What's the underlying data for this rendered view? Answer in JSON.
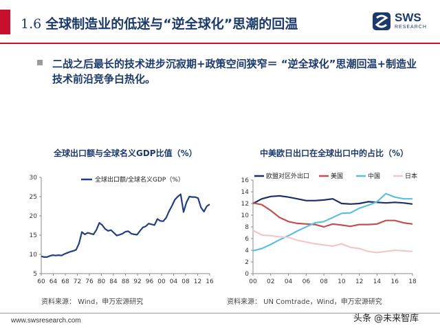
{
  "header": {
    "number": "1.6",
    "title": "全球制造业的低迷与“逆全球化”思潮的回温"
  },
  "logo": {
    "brand": "SWS",
    "sub": "RESEARCH"
  },
  "bullet": {
    "text": "二战之后最长的技术进步沉寂期+政策空间狭窄＝ “逆全球化”思潮回温+制造业技术前沿竞争白热化。"
  },
  "colors": {
    "accent": "#c8102e",
    "title": "#1b3a6b"
  },
  "chart_data": [
    {
      "type": "line",
      "title": "全球出口额与全球名义GDP比值（%）",
      "legend": [
        "全球出口额/全球名义GDP（%）"
      ],
      "x": [
        1960,
        1961,
        1962,
        1963,
        1964,
        1965,
        1966,
        1967,
        1968,
        1969,
        1970,
        1971,
        1972,
        1973,
        1974,
        1975,
        1976,
        1977,
        1978,
        1979,
        1980,
        1981,
        1982,
        1983,
        1984,
        1985,
        1986,
        1987,
        1988,
        1989,
        1990,
        1991,
        1992,
        1993,
        1994,
        1995,
        1996,
        1997,
        1998,
        1999,
        2000,
        2001,
        2002,
        2003,
        2004,
        2005,
        2006,
        2007,
        2008,
        2009,
        2010,
        2011,
        2012,
        2013,
        2014,
        2015,
        2016,
        2017,
        2018
      ],
      "x_tick_labels": [
        "60",
        "64",
        "68",
        "72",
        "76",
        "80",
        "84",
        "88",
        "92",
        "96",
        "00",
        "04",
        "08",
        "12",
        "16"
      ],
      "series": [
        {
          "color": "#1f3f7f",
          "values": [
            9.5,
            9.3,
            9.3,
            9.6,
            9.8,
            9.7,
            9.8,
            9.7,
            10.1,
            10.4,
            10.7,
            10.9,
            11.2,
            12.8,
            15.8,
            15.2,
            15.6,
            15.4,
            15.2,
            16.4,
            18.2,
            17.6,
            16.6,
            16.1,
            16.3,
            15.6,
            14.9,
            15.1,
            15.4,
            15.9,
            16.0,
            15.4,
            15.2,
            15.1,
            16.1,
            17.0,
            17.3,
            18.0,
            17.8,
            17.6,
            19.2,
            18.7,
            18.6,
            19.5,
            21.2,
            22.6,
            24.2,
            25.0,
            25.6,
            21.0,
            23.5,
            25.0,
            24.9,
            24.9,
            24.6,
            22.2,
            21.1,
            22.5,
            23.0
          ]
        }
      ],
      "ylim": [
        5,
        30
      ],
      "y_ticks": [
        5,
        10,
        15,
        20,
        25,
        30
      ],
      "source": "资料来源：  Wind，申万宏源研究"
    },
    {
      "type": "line",
      "title": "中美欧日出口在全球出口中的占比（%）",
      "x": [
        2000,
        2001,
        2002,
        2003,
        2004,
        2005,
        2006,
        2007,
        2008,
        2009,
        2010,
        2011,
        2012,
        2013,
        2014,
        2015,
        2016,
        2017,
        2018
      ],
      "x_tick_labels": [
        "00",
        "02",
        "04",
        "06",
        "08",
        "10",
        "12",
        "14",
        "16",
        "18"
      ],
      "series": [
        {
          "name": "欧盟对区外出口",
          "color": "#1b2f66",
          "values": [
            12.0,
            12.8,
            13.2,
            13.3,
            13.1,
            12.8,
            12.5,
            12.5,
            12.6,
            12.8,
            12.0,
            11.9,
            12.0,
            12.3,
            12.2,
            12.1,
            12.2,
            12.1,
            11.9
          ]
        },
        {
          "name": "美国",
          "color": "#c0504d",
          "values": [
            12.1,
            11.8,
            10.8,
            9.6,
            8.9,
            8.6,
            8.5,
            8.4,
            8.0,
            8.5,
            8.3,
            8.1,
            8.4,
            8.4,
            8.5,
            9.1,
            9.1,
            8.7,
            8.5
          ]
        },
        {
          "name": "中国",
          "color": "#5bc0de",
          "values": [
            3.9,
            4.3,
            5.0,
            5.8,
            6.5,
            7.3,
            8.0,
            8.7,
            8.9,
            9.6,
            10.3,
            10.4,
            11.2,
            11.7,
            12.3,
            13.7,
            13.1,
            12.8,
            12.8
          ]
        },
        {
          "name": "日本",
          "color": "#f2c7c7",
          "values": [
            7.4,
            6.6,
            6.5,
            6.3,
            6.2,
            5.7,
            5.4,
            5.1,
            4.9,
            4.7,
            5.1,
            4.5,
            4.3,
            3.8,
            3.6,
            3.8,
            4.0,
            3.9,
            3.8
          ]
        }
      ],
      "ylim": [
        0,
        16
      ],
      "y_ticks": [
        0,
        2,
        4,
        6,
        8,
        10,
        12,
        14,
        16
      ],
      "source": "资料来源：  UN Comtrade，Wind，申万宏源研究"
    }
  ],
  "footer": {
    "url": "www.swsresearch.com"
  },
  "watermark": "头条 @未来智库"
}
